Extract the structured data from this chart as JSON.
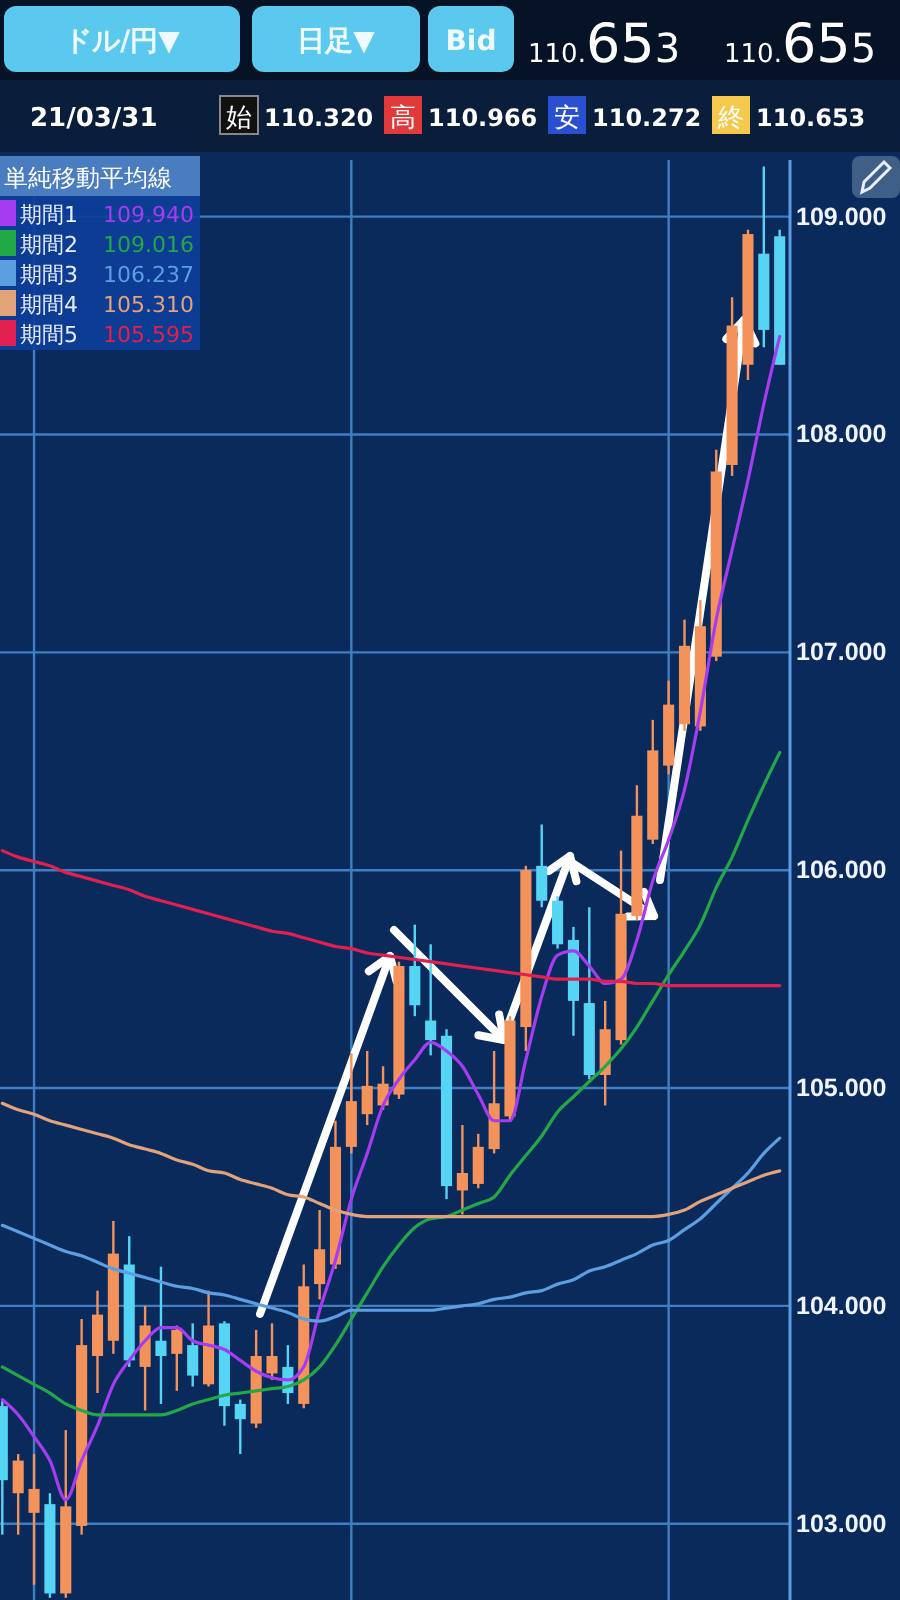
{
  "chart_data": {
    "type": "candlestick",
    "legend_title": "単純移動平均線",
    "legend": "top left",
    "grid": true,
    "tick_labels": "y",
    "categories": [
      null,
      null,
      null,
      null,
      null,
      null,
      null,
      null,
      null,
      null,
      null,
      null,
      null,
      null,
      null,
      null,
      null,
      null,
      null,
      null,
      null,
      null,
      null,
      null,
      null,
      null,
      null,
      null,
      null,
      null,
      null,
      null,
      null,
      null,
      null,
      null,
      null,
      null,
      null,
      null,
      null,
      null,
      null,
      null,
      null,
      null,
      null,
      null,
      null,
      null
    ],
    "ylim": [
      102.65,
      109.26
    ],
    "yticks": [
      {
        "value": 103,
        "label": "103.000"
      },
      {
        "value": 104,
        "label": "104.000"
      },
      {
        "value": 105,
        "label": "105.000"
      },
      {
        "value": 106,
        "label": "106.000"
      },
      {
        "value": 107,
        "label": "107.000"
      },
      {
        "value": 108,
        "label": "108.000"
      },
      {
        "value": 109,
        "label": "109.000"
      }
    ],
    "ohlc": [
      [
        103.54,
        103.57,
        102.95,
        103.2
      ],
      [
        103.14,
        103.32,
        102.95,
        103.29
      ],
      [
        103.05,
        103.32,
        102.72,
        103.16
      ],
      [
        103.09,
        103.14,
        102.66,
        102.68
      ],
      [
        102.68,
        103.43,
        102.66,
        103.08
      ],
      [
        102.99,
        103.94,
        102.95,
        103.82
      ],
      [
        103.77,
        104.07,
        103.6,
        103.96
      ],
      [
        103.84,
        104.39,
        103.78,
        104.24
      ],
      [
        104.19,
        104.32,
        103.72,
        103.75
      ],
      [
        103.72,
        104.0,
        103.52,
        103.91
      ],
      [
        103.84,
        104.18,
        103.55,
        103.77
      ],
      [
        103.78,
        103.91,
        103.61,
        103.89
      ],
      [
        103.82,
        103.92,
        103.63,
        103.68
      ],
      [
        103.64,
        104.07,
        103.63,
        103.91
      ],
      [
        103.92,
        103.93,
        103.45,
        103.54
      ],
      [
        103.55,
        103.57,
        103.32,
        103.48
      ],
      [
        103.46,
        103.89,
        103.44,
        103.77
      ],
      [
        103.69,
        103.92,
        103.66,
        103.77
      ],
      [
        103.72,
        103.82,
        103.55,
        103.6
      ],
      [
        103.55,
        104.19,
        103.53,
        104.09
      ],
      [
        104.1,
        104.44,
        104.03,
        104.26
      ],
      [
        104.19,
        104.85,
        104.17,
        104.73
      ],
      [
        104.73,
        105.16,
        104.7,
        104.94
      ],
      [
        104.88,
        105.17,
        104.83,
        105.01
      ],
      [
        104.92,
        105.1,
        104.9,
        105.02
      ],
      [
        104.97,
        105.58,
        104.95,
        105.56
      ],
      [
        105.56,
        105.75,
        105.33,
        105.38
      ],
      [
        105.31,
        105.66,
        105.15,
        105.22
      ],
      [
        105.24,
        105.27,
        104.49,
        104.55
      ],
      [
        104.53,
        104.83,
        104.42,
        104.61
      ],
      [
        104.56,
        104.79,
        104.54,
        104.73
      ],
      [
        104.72,
        105.17,
        104.7,
        104.93
      ],
      [
        104.87,
        105.33,
        104.85,
        105.31
      ],
      [
        105.28,
        106.02,
        105.17,
        106.0
      ],
      [
        106.02,
        106.21,
        105.83,
        105.86
      ],
      [
        105.86,
        105.88,
        105.64,
        105.66
      ],
      [
        105.68,
        105.74,
        105.24,
        105.4
      ],
      [
        105.39,
        105.83,
        105.04,
        105.06
      ],
      [
        105.06,
        105.4,
        104.92,
        105.27
      ],
      [
        105.22,
        106.09,
        105.2,
        105.8
      ],
      [
        105.79,
        106.39,
        105.77,
        106.25
      ],
      [
        106.14,
        106.69,
        106.12,
        106.55
      ],
      [
        106.48,
        106.87,
        106.44,
        106.76
      ],
      [
        106.67,
        107.15,
        106.64,
        107.03
      ],
      [
        106.66,
        107.24,
        106.64,
        107.12
      ],
      [
        106.98,
        107.93,
        106.96,
        107.83
      ],
      [
        107.86,
        108.63,
        107.81,
        108.5
      ],
      [
        108.32,
        108.94,
        108.25,
        108.92
      ],
      [
        108.83,
        109.23,
        108.4,
        108.48
      ],
      [
        108.91,
        108.94,
        108.32,
        108.32
      ]
    ],
    "colors": [
      "#55d4f4",
      "#f4925c",
      "#f4925c",
      "#55d4f4",
      "#f4925c",
      "#f4925c",
      "#f4925c",
      "#f4925c",
      "#55d4f4",
      "#f4925c",
      "#55d4f4",
      "#f4925c",
      "#55d4f4",
      "#f4925c",
      "#55d4f4",
      "#55d4f4",
      "#f4925c",
      "#f4925c",
      "#55d4f4",
      "#f4925c",
      "#f4925c",
      "#f4925c",
      "#f4925c",
      "#f4925c",
      "#f4925c",
      "#f4925c",
      "#55d4f4",
      "#55d4f4",
      "#55d4f4",
      "#f4925c",
      "#f4925c",
      "#f4925c",
      "#f4925c",
      "#f4925c",
      "#55d4f4",
      "#55d4f4",
      "#55d4f4",
      "#55d4f4",
      "#f4925c",
      "#f4925c",
      "#f4925c",
      "#f4925c",
      "#f4925c",
      "#f4925c",
      "#f4925c",
      "#f4925c",
      "#f4925c",
      "#f4925c",
      "#55d4f4",
      "#55d4f4"
    ],
    "series": [
      {
        "type": "line",
        "name": "期間1",
        "color": "#a43cf0",
        "values": [
          103.57,
          103.5,
          103.4,
          103.29,
          103.11,
          103.29,
          103.45,
          103.64,
          103.75,
          103.84,
          103.9,
          103.9,
          103.84,
          103.82,
          103.8,
          103.75,
          103.7,
          103.67,
          103.66,
          103.72,
          103.98,
          104.21,
          104.49,
          104.7,
          104.92,
          105.04,
          105.13,
          105.21,
          105.17,
          105.1,
          104.97,
          104.85,
          104.85,
          105.13,
          105.42,
          105.61,
          105.63,
          105.56,
          105.48,
          105.5,
          105.68,
          105.95,
          106.14,
          106.37,
          106.73,
          107.15,
          107.47,
          107.79,
          108.14,
          108.45
        ]
      },
      {
        "type": "line",
        "name": "期間2",
        "color": "#22a846",
        "values": [
          103.72,
          103.68,
          103.64,
          103.6,
          103.55,
          103.52,
          103.5,
          103.5,
          103.5,
          103.5,
          103.5,
          103.52,
          103.55,
          103.57,
          103.59,
          103.6,
          103.61,
          103.62,
          103.63,
          103.66,
          103.72,
          103.82,
          103.94,
          104.06,
          104.18,
          104.28,
          104.36,
          104.4,
          104.41,
          104.44,
          104.47,
          104.5,
          104.6,
          104.69,
          104.78,
          104.89,
          104.96,
          105.03,
          105.1,
          105.18,
          105.28,
          105.4,
          105.52,
          105.63,
          105.75,
          105.92,
          106.06,
          106.23,
          106.39,
          106.54
        ]
      },
      {
        "type": "line",
        "name": "期間3",
        "color": "#5c9ee0",
        "values": [
          104.37,
          104.34,
          104.31,
          104.28,
          104.25,
          104.23,
          104.2,
          104.17,
          104.15,
          104.13,
          104.11,
          104.09,
          104.08,
          104.06,
          104.05,
          104.03,
          104.01,
          103.99,
          103.97,
          103.94,
          103.93,
          103.95,
          103.98,
          103.98,
          103.98,
          103.98,
          103.98,
          103.98,
          103.99,
          104.0,
          104.01,
          104.03,
          104.04,
          104.06,
          104.07,
          104.1,
          104.12,
          104.16,
          104.18,
          104.21,
          104.24,
          104.28,
          104.3,
          104.35,
          104.4,
          104.47,
          104.54,
          104.61,
          104.7,
          104.77
        ]
      },
      {
        "type": "line",
        "name": "期間4",
        "color": "#e2a27a",
        "values": [
          104.93,
          104.9,
          104.88,
          104.85,
          104.83,
          104.81,
          104.79,
          104.77,
          104.74,
          104.72,
          104.7,
          104.67,
          104.65,
          104.62,
          104.61,
          104.58,
          104.56,
          104.54,
          104.51,
          104.5,
          104.47,
          104.44,
          104.42,
          104.41,
          104.41,
          104.41,
          104.41,
          104.41,
          104.41,
          104.41,
          104.41,
          104.41,
          104.41,
          104.41,
          104.41,
          104.41,
          104.41,
          104.41,
          104.41,
          104.41,
          104.41,
          104.41,
          104.42,
          104.44,
          104.48,
          104.51,
          104.54,
          104.57,
          104.6,
          104.62
        ]
      },
      {
        "type": "line",
        "name": "期間5",
        "color": "#e0204e",
        "values": [
          106.09,
          106.06,
          106.04,
          106.02,
          105.99,
          105.97,
          105.95,
          105.93,
          105.91,
          105.88,
          105.86,
          105.84,
          105.82,
          105.8,
          105.78,
          105.76,
          105.74,
          105.72,
          105.71,
          105.69,
          105.67,
          105.65,
          105.64,
          105.62,
          105.61,
          105.6,
          105.59,
          105.58,
          105.57,
          105.56,
          105.55,
          105.54,
          105.53,
          105.52,
          105.51,
          105.5,
          105.5,
          105.5,
          105.49,
          105.49,
          105.48,
          105.48,
          105.47,
          105.47,
          105.47,
          105.47,
          105.47,
          105.47,
          105.47,
          105.47
        ]
      }
    ],
    "annotations": [
      "ドル/円▼",
      "日足▼",
      "Bid",
      "110.653",
      "110.655",
      "21/03/31",
      "始",
      "110.320",
      "高",
      "110.966",
      "安",
      "110.272",
      "終",
      "110.653",
      "109.940",
      "109.016",
      "106.237",
      "105.310",
      "105.595"
    ]
  }
}
